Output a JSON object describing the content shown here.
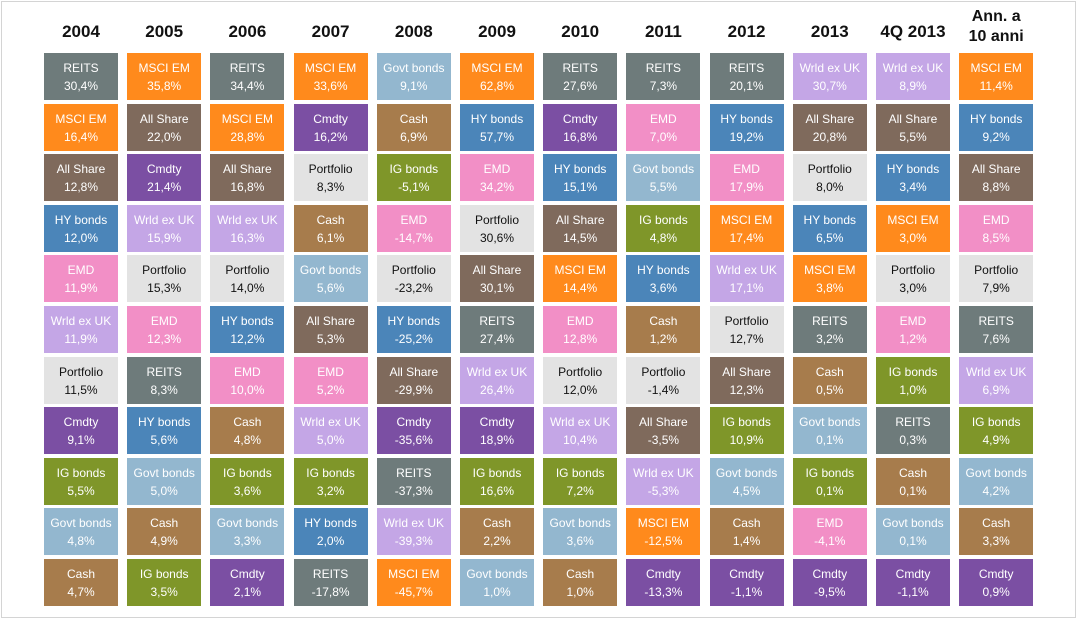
{
  "chart_data": {
    "type": "table",
    "columns": [
      "2004",
      "2005",
      "2006",
      "2007",
      "2008",
      "2009",
      "2010",
      "2011",
      "2012",
      "2013",
      "4Q 2013",
      "Ann. a 10 anni"
    ],
    "colors": {
      "REITS": "#6e7b7b",
      "MSCI EM": "#ff8a1c",
      "Govt bonds": "#93b7cf",
      "Cmdty": "#7b4fa3",
      "Cash": "#a77c4c",
      "HY bonds": "#4b85b9",
      "EMD": "#f28fc6",
      "All Share": "#7f6a5c",
      "IG bonds": "#7f9629",
      "Wrld ex UK": "#c4a6e6",
      "Portfolio": "#e3e3e3"
    },
    "rows": [
      [
        {
          "name": "REITS",
          "value": "30,4%"
        },
        {
          "name": "MSCI EM",
          "value": "35,8%"
        },
        {
          "name": "REITS",
          "value": "34,4%"
        },
        {
          "name": "MSCI EM",
          "value": "33,6%"
        },
        {
          "name": "Govt bonds",
          "value": "9,1%"
        },
        {
          "name": "MSCI EM",
          "value": "62,8%"
        },
        {
          "name": "REITS",
          "value": "27,6%"
        },
        {
          "name": "REITS",
          "value": "7,3%"
        },
        {
          "name": "REITS",
          "value": "20,1%"
        },
        {
          "name": "Wrld ex UK",
          "value": "30,7%"
        },
        {
          "name": "Wrld ex UK",
          "value": "8,9%"
        },
        {
          "name": "MSCI EM",
          "value": "11,4%"
        }
      ],
      [
        {
          "name": "MSCI EM",
          "value": "16,4%"
        },
        {
          "name": "All Share",
          "value": "22,0%"
        },
        {
          "name": "MSCI EM",
          "value": "28,8%"
        },
        {
          "name": "Cmdty",
          "value": "16,2%"
        },
        {
          "name": "Cash",
          "value": "6,9%"
        },
        {
          "name": "HY bonds",
          "value": "57,7%"
        },
        {
          "name": "Cmdty",
          "value": "16,8%"
        },
        {
          "name": "EMD",
          "value": "7,0%"
        },
        {
          "name": "HY bonds",
          "value": "19,2%"
        },
        {
          "name": "All Share",
          "value": "20,8%"
        },
        {
          "name": "All Share",
          "value": "5,5%"
        },
        {
          "name": "HY bonds",
          "value": "9,2%"
        }
      ],
      [
        {
          "name": "All Share",
          "value": "12,8%"
        },
        {
          "name": "Cmdty",
          "value": "21,4%"
        },
        {
          "name": "All Share",
          "value": "16,8%"
        },
        {
          "name": "Portfolio",
          "value": "8,3%"
        },
        {
          "name": "IG bonds",
          "value": "-5,1%"
        },
        {
          "name": "EMD",
          "value": "34,2%"
        },
        {
          "name": "HY bonds",
          "value": "15,1%"
        },
        {
          "name": "Govt bonds",
          "value": "5,5%"
        },
        {
          "name": "EMD",
          "value": "17,9%"
        },
        {
          "name": "Portfolio",
          "value": "8,0%"
        },
        {
          "name": "HY bonds",
          "value": "3,4%"
        },
        {
          "name": "All Share",
          "value": "8,8%"
        }
      ],
      [
        {
          "name": "HY bonds",
          "value": "12,0%"
        },
        {
          "name": "Wrld ex UK",
          "value": "15,9%"
        },
        {
          "name": "Wrld ex UK",
          "value": "16,3%"
        },
        {
          "name": "Cash",
          "value": "6,1%"
        },
        {
          "name": "EMD",
          "value": "-14,7%"
        },
        {
          "name": "Portfolio",
          "value": "30,6%"
        },
        {
          "name": "All Share",
          "value": "14,5%"
        },
        {
          "name": "IG bonds",
          "value": "4,8%"
        },
        {
          "name": "MSCI EM",
          "value": "17,4%"
        },
        {
          "name": "HY bonds",
          "value": "6,5%"
        },
        {
          "name": "MSCI EM",
          "value": "3,0%"
        },
        {
          "name": "EMD",
          "value": "8,5%"
        }
      ],
      [
        {
          "name": "EMD",
          "value": "11,9%"
        },
        {
          "name": "Portfolio",
          "value": "15,3%"
        },
        {
          "name": "Portfolio",
          "value": "14,0%"
        },
        {
          "name": "Govt bonds",
          "value": "5,6%"
        },
        {
          "name": "Portfolio",
          "value": "-23,2%"
        },
        {
          "name": "All Share",
          "value": "30,1%"
        },
        {
          "name": "MSCI EM",
          "value": "14,4%"
        },
        {
          "name": "HY bonds",
          "value": "3,6%"
        },
        {
          "name": "Wrld ex UK",
          "value": "17,1%"
        },
        {
          "name": "MSCI EM",
          "value": "3,8%"
        },
        {
          "name": "Portfolio",
          "value": "3,0%"
        },
        {
          "name": "Portfolio",
          "value": "7,9%"
        }
      ],
      [
        {
          "name": "Wrld ex UK",
          "value": "11,9%"
        },
        {
          "name": "EMD",
          "value": "12,3%"
        },
        {
          "name": "HY bonds",
          "value": "12,2%"
        },
        {
          "name": "All Share",
          "value": "5,3%"
        },
        {
          "name": "HY bonds",
          "value": "-25,2%"
        },
        {
          "name": "REITS",
          "value": "27,4%"
        },
        {
          "name": "EMD",
          "value": "12,8%"
        },
        {
          "name": "Cash",
          "value": "1,2%"
        },
        {
          "name": "Portfolio",
          "value": "12,7%"
        },
        {
          "name": "REITS",
          "value": "3,2%"
        },
        {
          "name": "EMD",
          "value": "1,2%"
        },
        {
          "name": "REITS",
          "value": "7,6%"
        }
      ],
      [
        {
          "name": "Portfolio",
          "value": "11,5%"
        },
        {
          "name": "REITS",
          "value": "8,3%"
        },
        {
          "name": "EMD",
          "value": "10,0%"
        },
        {
          "name": "EMD",
          "value": "5,2%"
        },
        {
          "name": "All Share",
          "value": "-29,9%"
        },
        {
          "name": "Wrld ex UK",
          "value": "26,4%"
        },
        {
          "name": "Portfolio",
          "value": "12,0%"
        },
        {
          "name": "Portfolio",
          "value": "-1,4%"
        },
        {
          "name": "All Share",
          "value": "12,3%"
        },
        {
          "name": "Cash",
          "value": "0,5%"
        },
        {
          "name": "IG bonds",
          "value": "1,0%"
        },
        {
          "name": "Wrld ex UK",
          "value": "6,9%"
        }
      ],
      [
        {
          "name": "Cmdty",
          "value": "9,1%"
        },
        {
          "name": "HY bonds",
          "value": "5,6%"
        },
        {
          "name": "Cash",
          "value": "4,8%"
        },
        {
          "name": "Wrld ex UK",
          "value": "5,0%"
        },
        {
          "name": "Cmdty",
          "value": "-35,6%"
        },
        {
          "name": "Cmdty",
          "value": "18,9%"
        },
        {
          "name": "Wrld ex UK",
          "value": "10,4%"
        },
        {
          "name": "All Share",
          "value": "-3,5%"
        },
        {
          "name": "IG bonds",
          "value": "10,9%"
        },
        {
          "name": "Govt bonds",
          "value": "0,1%"
        },
        {
          "name": "REITS",
          "value": "0,3%"
        },
        {
          "name": "IG bonds",
          "value": "4,9%"
        }
      ],
      [
        {
          "name": "IG bonds",
          "value": "5,5%"
        },
        {
          "name": "Govt bonds",
          "value": "5,0%"
        },
        {
          "name": "IG bonds",
          "value": "3,6%"
        },
        {
          "name": "IG bonds",
          "value": "3,2%"
        },
        {
          "name": "REITS",
          "value": "-37,3%"
        },
        {
          "name": "IG bonds",
          "value": "16,6%"
        },
        {
          "name": "IG bonds",
          "value": "7,2%"
        },
        {
          "name": "Wrld ex UK",
          "value": "-5,3%"
        },
        {
          "name": "Govt bonds",
          "value": "4,5%"
        },
        {
          "name": "IG bonds",
          "value": "0,1%"
        },
        {
          "name": "Cash",
          "value": "0,1%"
        },
        {
          "name": "Govt bonds",
          "value": "4,2%"
        }
      ],
      [
        {
          "name": "Govt bonds",
          "value": "4,8%"
        },
        {
          "name": "Cash",
          "value": "4,9%"
        },
        {
          "name": "Govt bonds",
          "value": "3,3%"
        },
        {
          "name": "HY bonds",
          "value": "2,0%"
        },
        {
          "name": "Wrld ex UK",
          "value": "-39,3%"
        },
        {
          "name": "Cash",
          "value": "2,2%"
        },
        {
          "name": "Govt bonds",
          "value": "3,6%"
        },
        {
          "name": "MSCI EM",
          "value": "-12,5%"
        },
        {
          "name": "Cash",
          "value": "1,4%"
        },
        {
          "name": "EMD",
          "value": "-4,1%"
        },
        {
          "name": "Govt bonds",
          "value": "0,1%"
        },
        {
          "name": "Cash",
          "value": "3,3%"
        }
      ],
      [
        {
          "name": "Cash",
          "value": "4,7%"
        },
        {
          "name": "IG bonds",
          "value": "3,5%"
        },
        {
          "name": "Cmdty",
          "value": "2,1%"
        },
        {
          "name": "REITS",
          "value": "-17,8%"
        },
        {
          "name": "MSCI EM",
          "value": "-45,7%"
        },
        {
          "name": "Govt bonds",
          "value": "1,0%"
        },
        {
          "name": "Cash",
          "value": "1,0%"
        },
        {
          "name": "Cmdty",
          "value": "-13,3%"
        },
        {
          "name": "Cmdty",
          "value": "-1,1%"
        },
        {
          "name": "Cmdty",
          "value": "-9,5%"
        },
        {
          "name": "Cmdty",
          "value": "-1,1%"
        },
        {
          "name": "Cmdty",
          "value": "0,9%"
        }
      ]
    ]
  }
}
